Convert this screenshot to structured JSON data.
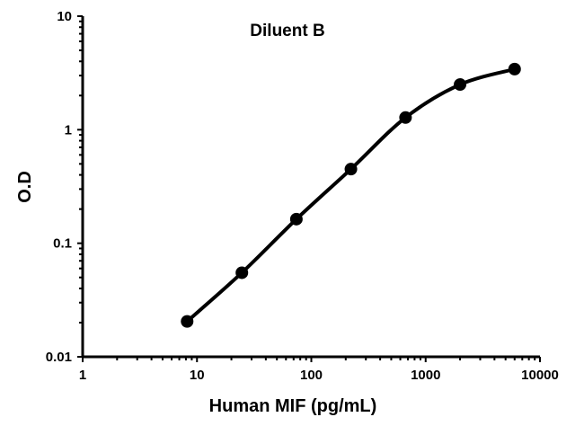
{
  "chart_data": {
    "type": "line",
    "title": "Diluent B",
    "xlabel": "Human MIF (pg/mL)",
    "ylabel": "O.D",
    "x_scale": "log",
    "y_scale": "log",
    "xlim": [
      1,
      10000
    ],
    "ylim": [
      0.01,
      10
    ],
    "x_ticks": [
      "1",
      "10",
      "100",
      "1000",
      "10000"
    ],
    "y_ticks": [
      "0.01",
      "0.1",
      "1",
      "10"
    ],
    "grid": false,
    "series": [
      {
        "x": [
          8.2,
          24.7,
          74,
          222,
          667,
          2000,
          6000
        ],
        "y": [
          0.0205,
          0.055,
          0.163,
          0.45,
          1.28,
          2.5,
          3.42
        ],
        "color": "#000000",
        "marker": "circle",
        "smooth": true
      }
    ]
  }
}
